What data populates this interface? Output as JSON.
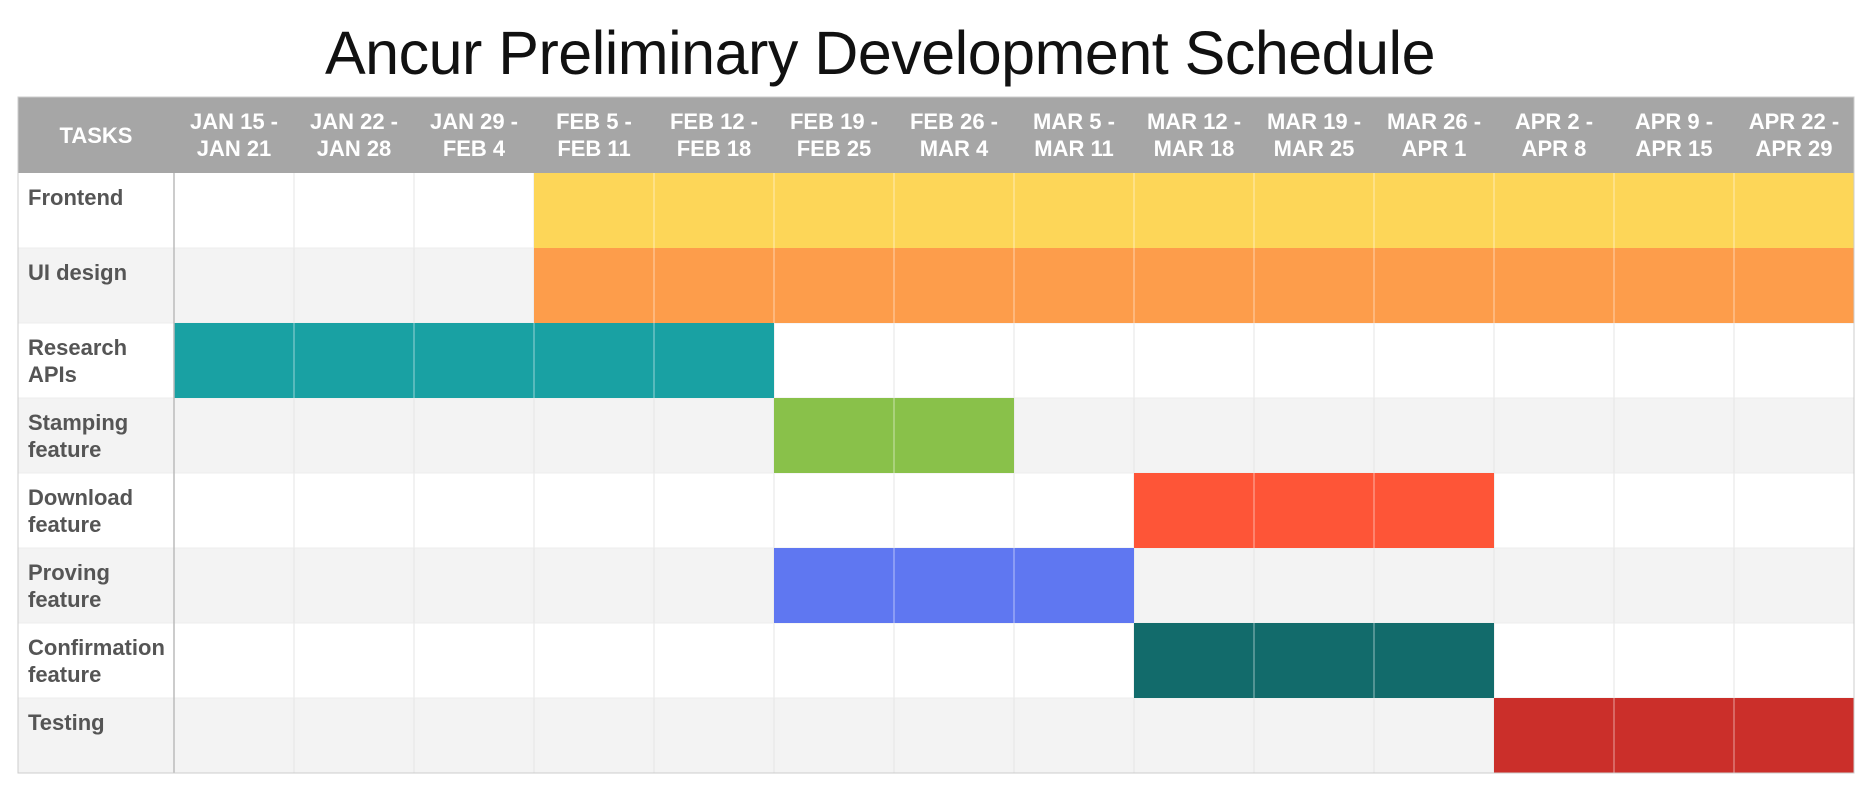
{
  "chart_data": {
    "type": "table",
    "title": "Ancur Preliminary Development Schedule",
    "first_column_header": "TASKS",
    "weeks": [
      [
        "JAN 15 -",
        "JAN 21"
      ],
      [
        "JAN 22 -",
        "JAN 28"
      ],
      [
        "JAN 29 -",
        "FEB 4"
      ],
      [
        "FEB 5 -",
        "FEB 11"
      ],
      [
        "FEB 12 -",
        "FEB 18"
      ],
      [
        "FEB 19 -",
        "FEB 25"
      ],
      [
        "FEB 26 -",
        "MAR 4"
      ],
      [
        "MAR 5 -",
        "MAR 11"
      ],
      [
        "MAR 12 -",
        "MAR 18"
      ],
      [
        "MAR 19 -",
        "MAR 25"
      ],
      [
        "MAR 26 -",
        "APR 1"
      ],
      [
        "APR 2 -",
        "APR 8"
      ],
      [
        "APR 9 -",
        "APR 15"
      ],
      [
        "APR 22 -",
        "APR 29"
      ]
    ],
    "tasks": [
      {
        "lines": [
          "Frontend"
        ],
        "start_week": 3,
        "end_week": 13,
        "color": "#fdd658"
      },
      {
        "lines": [
          "UI design"
        ],
        "start_week": 3,
        "end_week": 13,
        "color": "#fd9d4b"
      },
      {
        "lines": [
          "Research",
          "APIs"
        ],
        "start_week": 0,
        "end_week": 4,
        "color": "#19a1a3"
      },
      {
        "lines": [
          "Stamping",
          "feature"
        ],
        "start_week": 5,
        "end_week": 6,
        "color": "#89c14a"
      },
      {
        "lines": [
          "Download",
          "feature"
        ],
        "start_week": 8,
        "end_week": 10,
        "color": "#fe5537"
      },
      {
        "lines": [
          "Proving",
          "feature"
        ],
        "start_week": 5,
        "end_week": 7,
        "color": "#5f77f1"
      },
      {
        "lines": [
          "Confirmation",
          "feature"
        ],
        "start_week": 8,
        "end_week": 10,
        "color": "#126b6b"
      },
      {
        "lines": [
          "Testing"
        ],
        "start_week": 11,
        "end_week": 13,
        "color": "#cb2f2a"
      }
    ],
    "colors": {
      "header_bg": "#a6a6a6",
      "header_text": "#ffffff",
      "row_alt_bg": "#f3f3f3",
      "row_bg": "#ffffff",
      "task_text": "#555555",
      "grid_line": "#e6e6e6"
    }
  }
}
